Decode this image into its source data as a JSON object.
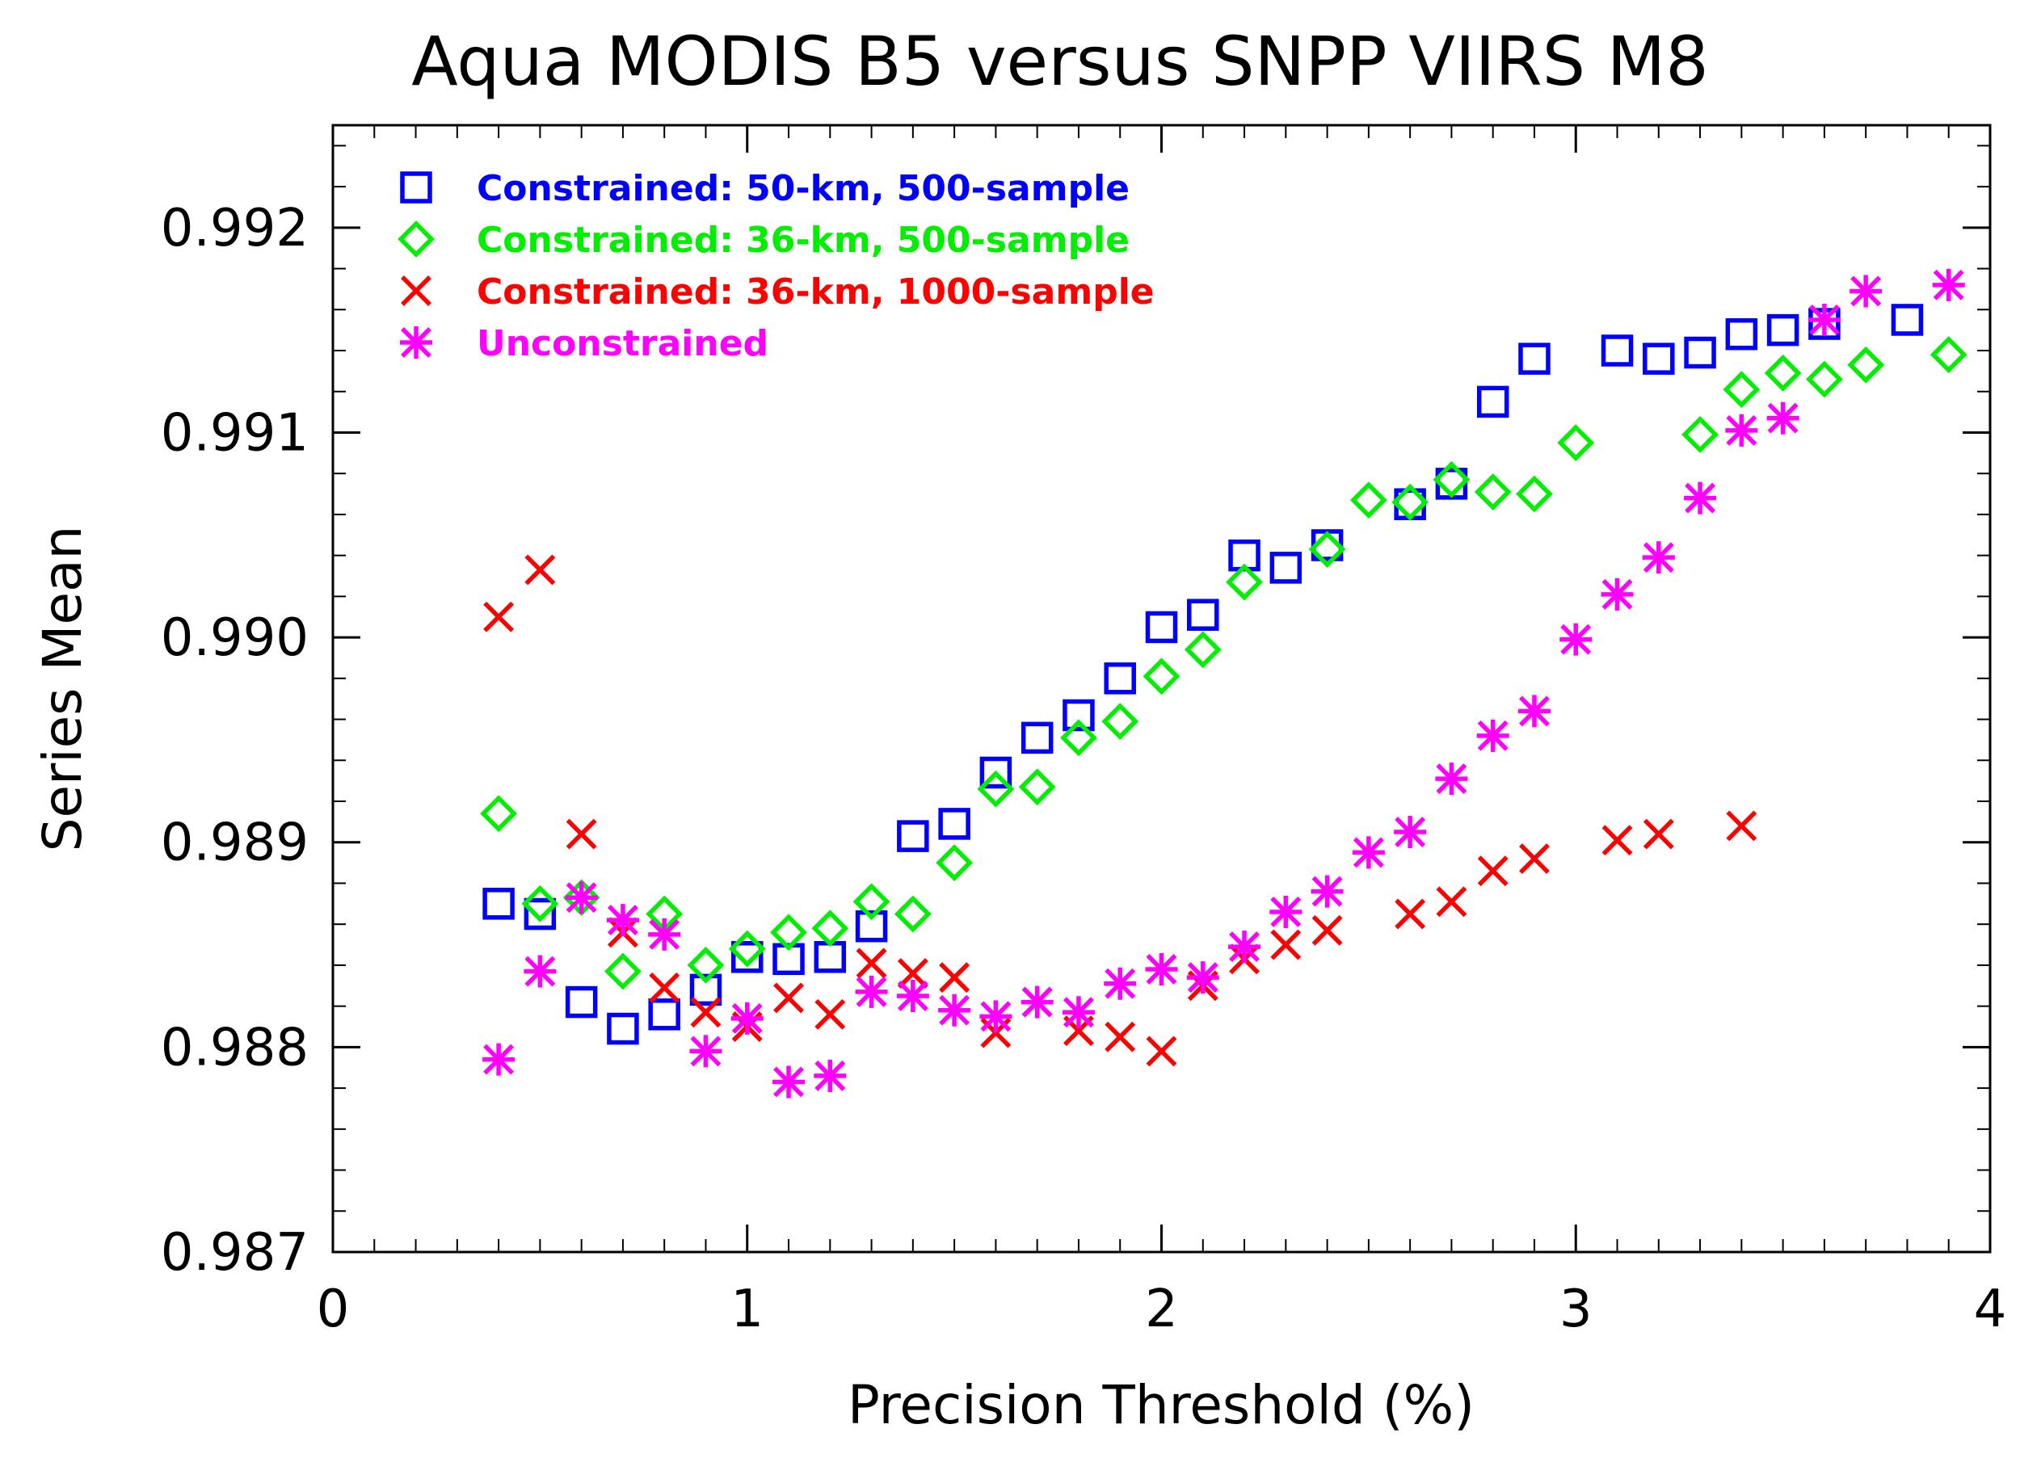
{
  "chart_data": {
    "type": "scatter",
    "title": "Aqua MODIS B5 versus SNPP VIIRS M8",
    "xlabel": "Precision Threshold (%)",
    "ylabel": "Series Mean",
    "xlim": [
      0,
      4
    ],
    "ylim": [
      0.987,
      0.9925
    ],
    "xticks": [
      "0",
      "1",
      "2",
      "3",
      "4"
    ],
    "xtick_values": [
      0,
      1,
      2,
      3,
      4
    ],
    "yticks": [
      "0.987",
      "0.988",
      "0.989",
      "0.990",
      "0.991",
      "0.992"
    ],
    "ytick_values": [
      0.987,
      0.988,
      0.989,
      0.99,
      0.991,
      0.992
    ],
    "x_minor_step": 0.1,
    "y_minor_step": 0.0002,
    "legend_position": "top-left",
    "series": [
      {
        "name": "Constrained: 50-km, 500-sample",
        "color": "#0000ff",
        "marker": "square",
        "points": [
          [
            0.4,
            0.9887
          ],
          [
            0.5,
            0.98865
          ],
          [
            0.6,
            0.98822
          ],
          [
            0.7,
            0.98809
          ],
          [
            0.8,
            0.98816
          ],
          [
            0.9,
            0.98828
          ],
          [
            1.0,
            0.98844
          ],
          [
            1.1,
            0.98843
          ],
          [
            1.2,
            0.98844
          ],
          [
            1.3,
            0.98859
          ],
          [
            1.4,
            0.98903
          ],
          [
            1.5,
            0.98909
          ],
          [
            1.6,
            0.98934
          ],
          [
            1.7,
            0.98951
          ],
          [
            1.8,
            0.98962
          ],
          [
            1.9,
            0.9898
          ],
          [
            2.0,
            0.99005
          ],
          [
            2.1,
            0.99011
          ],
          [
            2.2,
            0.9904
          ],
          [
            2.3,
            0.99034
          ],
          [
            2.4,
            0.99045
          ],
          [
            2.6,
            0.99065
          ],
          [
            2.7,
            0.99075
          ],
          [
            2.8,
            0.99115
          ],
          [
            2.9,
            0.99136
          ],
          [
            3.1,
            0.9914
          ],
          [
            3.2,
            0.99136
          ],
          [
            3.3,
            0.99139
          ],
          [
            3.4,
            0.99148
          ],
          [
            3.5,
            0.9915
          ],
          [
            3.6,
            0.99153
          ],
          [
            3.8,
            0.99155
          ]
        ]
      },
      {
        "name": "Constrained: 36-km, 500-sample",
        "color": "#00ee00",
        "marker": "diamond",
        "points": [
          [
            0.4,
            0.98914
          ],
          [
            0.5,
            0.9887
          ],
          [
            0.6,
            0.98873
          ],
          [
            0.7,
            0.98837
          ],
          [
            0.8,
            0.98865
          ],
          [
            0.9,
            0.9884
          ],
          [
            1.0,
            0.98848
          ],
          [
            1.1,
            0.98856
          ],
          [
            1.2,
            0.98858
          ],
          [
            1.3,
            0.98871
          ],
          [
            1.4,
            0.98865
          ],
          [
            1.5,
            0.9889
          ],
          [
            1.6,
            0.98926
          ],
          [
            1.7,
            0.98927
          ],
          [
            1.8,
            0.98951
          ],
          [
            1.9,
            0.98959
          ],
          [
            2.0,
            0.98981
          ],
          [
            2.1,
            0.98994
          ],
          [
            2.2,
            0.99027
          ],
          [
            2.4,
            0.99043
          ],
          [
            2.5,
            0.99067
          ],
          [
            2.6,
            0.99066
          ],
          [
            2.7,
            0.99077
          ],
          [
            2.8,
            0.99071
          ],
          [
            2.9,
            0.9907
          ],
          [
            3.0,
            0.99095
          ],
          [
            3.3,
            0.99099
          ],
          [
            3.4,
            0.99121
          ],
          [
            3.5,
            0.99129
          ],
          [
            3.6,
            0.99126
          ],
          [
            3.7,
            0.99133
          ],
          [
            3.9,
            0.99138
          ]
        ]
      },
      {
        "name": "Constrained: 36-km, 1000-sample",
        "color": "#ff0000",
        "marker": "x",
        "points": [
          [
            0.4,
            0.9901
          ],
          [
            0.5,
            0.99033
          ],
          [
            0.6,
            0.98904
          ],
          [
            0.7,
            0.98856
          ],
          [
            0.8,
            0.98829
          ],
          [
            0.9,
            0.98817
          ],
          [
            1.0,
            0.9881
          ],
          [
            1.1,
            0.98824
          ],
          [
            1.2,
            0.98816
          ],
          [
            1.3,
            0.98841
          ],
          [
            1.4,
            0.98836
          ],
          [
            1.5,
            0.98834
          ],
          [
            1.6,
            0.98807
          ],
          [
            1.7,
            0.98822
          ],
          [
            1.8,
            0.98808
          ],
          [
            1.9,
            0.98805
          ],
          [
            2.0,
            0.98798
          ],
          [
            2.1,
            0.9883
          ],
          [
            2.2,
            0.98843
          ],
          [
            2.3,
            0.9885
          ],
          [
            2.4,
            0.98857
          ],
          [
            2.6,
            0.98865
          ],
          [
            2.7,
            0.98871
          ],
          [
            2.8,
            0.98886
          ],
          [
            2.9,
            0.98892
          ],
          [
            3.1,
            0.98901
          ],
          [
            3.2,
            0.98904
          ],
          [
            3.4,
            0.98908
          ]
        ]
      },
      {
        "name": "Unconstrained",
        "color": "#ff00ff",
        "marker": "asterisk",
        "points": [
          [
            0.4,
            0.98794
          ],
          [
            0.5,
            0.98837
          ],
          [
            0.6,
            0.98873
          ],
          [
            0.7,
            0.98862
          ],
          [
            0.8,
            0.98855
          ],
          [
            0.9,
            0.98798
          ],
          [
            1.0,
            0.98814
          ],
          [
            1.1,
            0.98783
          ],
          [
            1.2,
            0.98786
          ],
          [
            1.3,
            0.98827
          ],
          [
            1.4,
            0.98825
          ],
          [
            1.5,
            0.98818
          ],
          [
            1.6,
            0.98815
          ],
          [
            1.7,
            0.98822
          ],
          [
            1.8,
            0.98817
          ],
          [
            1.9,
            0.98831
          ],
          [
            2.0,
            0.98838
          ],
          [
            2.1,
            0.98834
          ],
          [
            2.2,
            0.98849
          ],
          [
            2.3,
            0.98866
          ],
          [
            2.4,
            0.98876
          ],
          [
            2.5,
            0.98895
          ],
          [
            2.6,
            0.98905
          ],
          [
            2.7,
            0.98931
          ],
          [
            2.8,
            0.98952
          ],
          [
            2.9,
            0.98964
          ],
          [
            3.0,
            0.98999
          ],
          [
            3.1,
            0.99021
          ],
          [
            3.2,
            0.99039
          ],
          [
            3.3,
            0.99068
          ],
          [
            3.4,
            0.99101
          ],
          [
            3.5,
            0.99107
          ],
          [
            3.6,
            0.99155
          ],
          [
            3.7,
            0.99169
          ],
          [
            3.9,
            0.99172
          ]
        ]
      }
    ]
  }
}
